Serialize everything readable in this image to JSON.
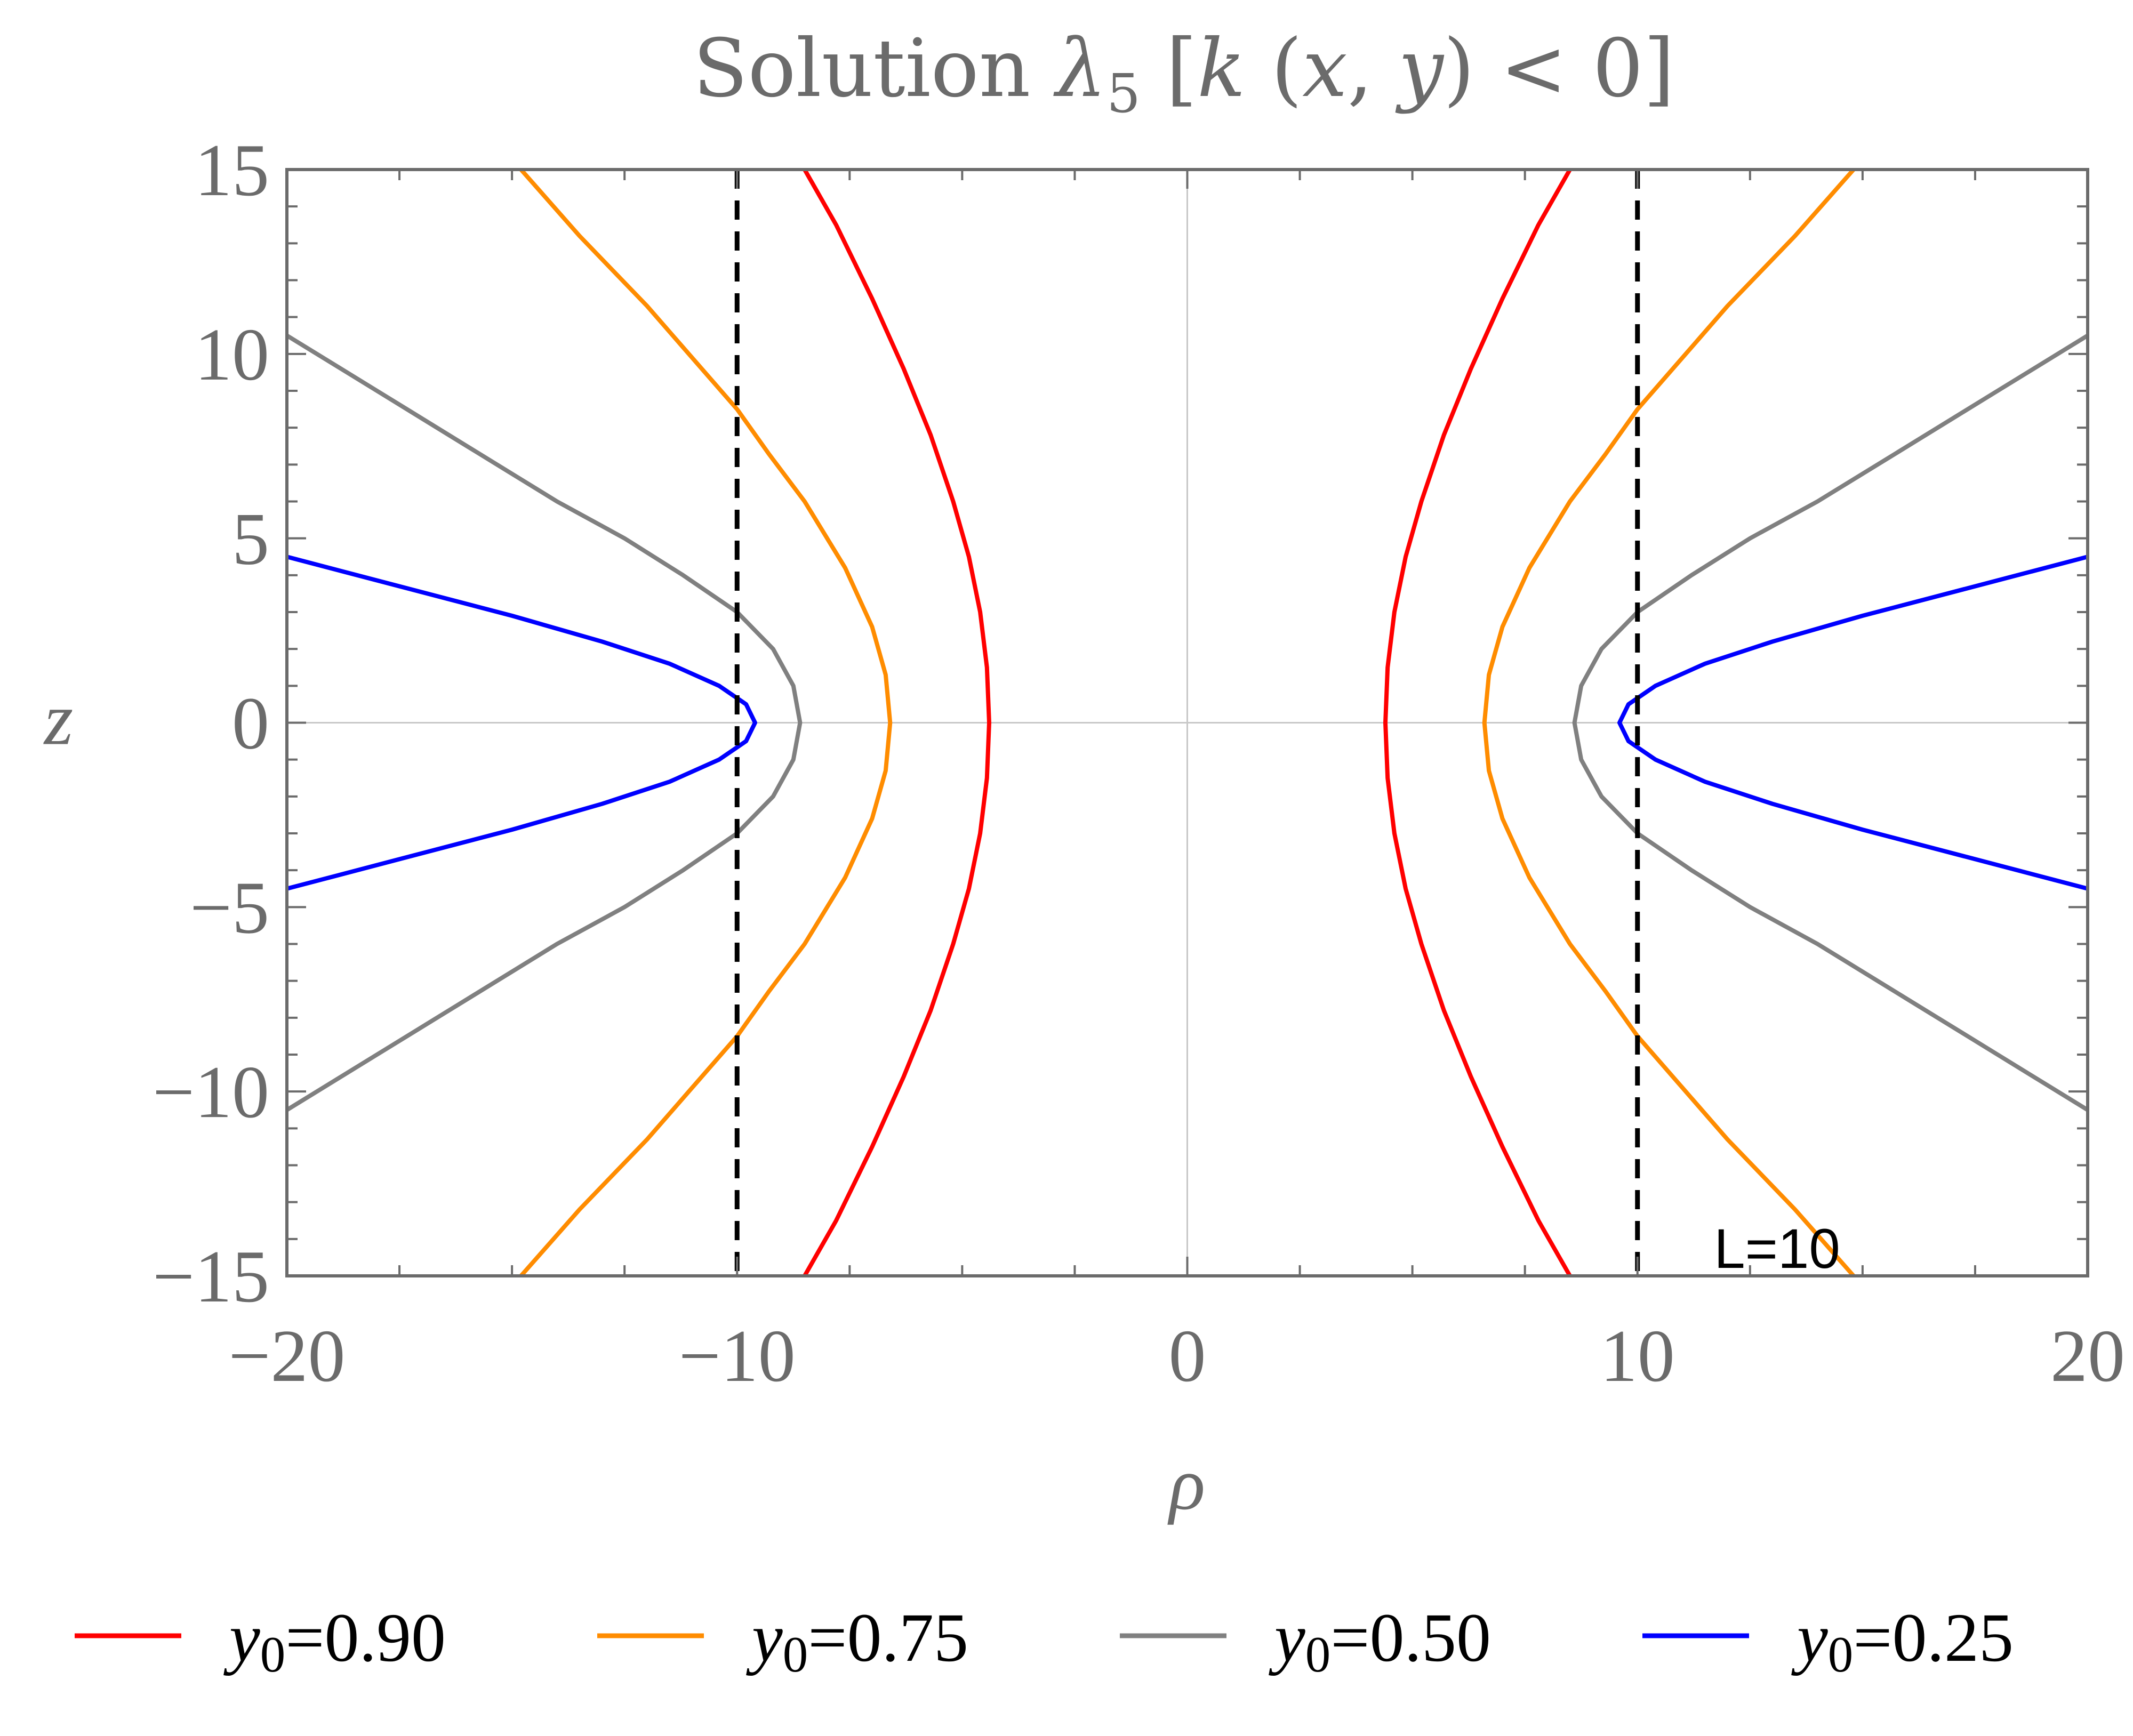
{
  "chart_data": {
    "type": "line",
    "title_parts": {
      "prefix": "Solution ",
      "lambda": "λ",
      "lambda_sub": "5",
      "open": "  [",
      "k": "k",
      "args_open": " (",
      "x": "x",
      "comma": ", ",
      "y": "y",
      "close": ") < 0]"
    },
    "xlabel": "ρ",
    "ylabel": "z",
    "xlim": [
      -20,
      20
    ],
    "ylim": [
      -15,
      15
    ],
    "xticks": [
      -20,
      -10,
      0,
      10,
      20
    ],
    "xtick_labels": [
      "−20",
      "−10",
      "0",
      "10",
      "20"
    ],
    "yticks": [
      -15,
      -10,
      -5,
      0,
      5,
      10,
      15
    ],
    "ytick_labels": [
      "−15",
      "−10",
      "−5",
      "0",
      "5",
      "10",
      "15"
    ],
    "gridlines": {
      "x": [
        0
      ],
      "y": [
        0
      ]
    },
    "reference_lines": [
      {
        "x": -10,
        "style": "dashed",
        "color": "#000000"
      },
      {
        "x": 10,
        "style": "dashed",
        "color": "#000000"
      }
    ],
    "annotation": "L=10",
    "legend_position": "bottom",
    "series": [
      {
        "name": "y0=0.90",
        "name_var": "y",
        "name_sub": "0",
        "name_val": "=0.90",
        "color": "#ff0000",
        "x": [
          4.4,
          4.45,
          4.6,
          4.85,
          5.2,
          5.7,
          6.3,
          7.0,
          7.8,
          8.5
        ],
        "y": [
          0,
          1.5,
          3,
          4.5,
          6,
          7.8,
          9.6,
          11.5,
          13.5,
          15
        ]
      },
      {
        "name": "y0=0.75",
        "name_var": "y",
        "name_sub": "0",
        "name_val": "=0.75",
        "color": "#ff8c00",
        "x": [
          6.6,
          6.7,
          7.0,
          7.6,
          8.5,
          9.3,
          10.0,
          11.0,
          12.0,
          13.5,
          14.8
        ],
        "y": [
          0,
          1.3,
          2.6,
          4.2,
          6,
          7.3,
          8.5,
          9.9,
          11.3,
          13.2,
          15
        ]
      },
      {
        "name": "y0=0.50",
        "name_var": "y",
        "name_sub": "0",
        "name_val": "=0.50",
        "color": "#808080",
        "x": [
          8.6,
          8.75,
          9.2,
          10.0,
          11.2,
          12.5,
          14.0,
          16.0,
          18.0,
          20.0
        ],
        "y": [
          0,
          1.0,
          2.0,
          3.0,
          4.0,
          5.0,
          6.0,
          7.5,
          9.0,
          10.5
        ]
      },
      {
        "name": "y0=0.25",
        "name_var": "y",
        "name_sub": "0",
        "name_val": "=0.25",
        "color": "#0000ff",
        "x": [
          9.6,
          9.8,
          10.4,
          11.5,
          13.0,
          15.0,
          17.5,
          20.0
        ],
        "y": [
          0,
          0.5,
          1.0,
          1.6,
          2.2,
          2.9,
          3.7,
          4.5
        ]
      }
    ],
    "series_note": "each curve is symmetric: listed points are the upper-right branch, mirrored in rho and z"
  },
  "colors": {
    "frame": "#6b6b6b",
    "grid": "#c8c8c8",
    "text": "#6b6b6b"
  }
}
